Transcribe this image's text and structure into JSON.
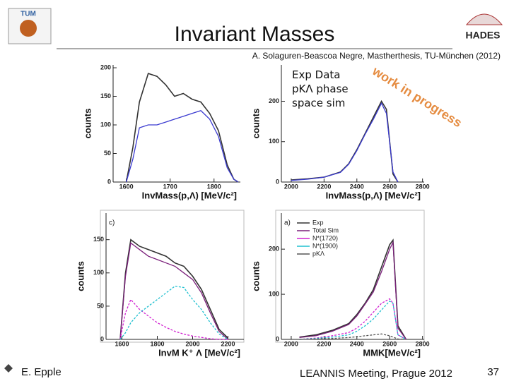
{
  "slide": {
    "title": "Invariant Masses",
    "subtitle": "A. Solaguren-Beascoa Negre, Mastherthesis, TU-München (2012)",
    "logo_left": "TUM",
    "logo_right": "HADES",
    "author": "E. Epple",
    "event": "LEANNIS Meeting, Prague 2012",
    "page": "37"
  },
  "chart_data": [
    {
      "type": "line",
      "xlabel": "InvMass(p,Λ) [MeV/c²]",
      "ylabel": "counts",
      "x": [
        1600,
        1615,
        1630,
        1650,
        1670,
        1690,
        1710,
        1730,
        1750,
        1770,
        1790,
        1810,
        1830,
        1845,
        1855
      ],
      "series": [
        {
          "color": "#333333",
          "values": [
            0,
            60,
            140,
            190,
            185,
            170,
            150,
            155,
            145,
            140,
            120,
            90,
            30,
            5,
            0
          ]
        },
        {
          "color": "#3a3ad0",
          "values": [
            0,
            40,
            95,
            100,
            100,
            105,
            110,
            115,
            120,
            125,
            110,
            80,
            25,
            5,
            0
          ]
        }
      ],
      "xlim": [
        1570,
        1860
      ],
      "ylim": [
        0,
        205
      ],
      "xticks": [
        1600,
        1700,
        1800
      ],
      "yticks": [
        0,
        50,
        100,
        150,
        200
      ]
    },
    {
      "type": "line",
      "xlabel": "InvMass(p,Λ) [MeV/c²]",
      "ylabel": "counts",
      "annotation": "work in progress",
      "x": [
        2000,
        2100,
        2200,
        2300,
        2350,
        2400,
        2450,
        2500,
        2550,
        2580,
        2620,
        2650
      ],
      "series": [
        {
          "name": "Exp Data",
          "color": "#333333",
          "values": [
            5,
            8,
            12,
            25,
            45,
            80,
            120,
            160,
            200,
            180,
            20,
            0
          ]
        },
        {
          "name": "pKΛ phase space sim",
          "color": "#3a3ad0",
          "values": [
            4,
            7,
            12,
            24,
            44,
            78,
            118,
            155,
            195,
            170,
            25,
            0
          ]
        }
      ],
      "xlim": [
        1940,
        2810
      ],
      "ylim": [
        0,
        290
      ],
      "xticks": [
        2000,
        2200,
        2400,
        2600,
        2800
      ],
      "yticks": [
        0,
        100,
        200
      ]
    },
    {
      "type": "line",
      "xlabel": "InvM K⁺ Λ [MeV/c²]",
      "ylabel": "counts",
      "panel": "c)",
      "x": [
        1590,
        1620,
        1650,
        1700,
        1750,
        1800,
        1850,
        1900,
        1950,
        2000,
        2050,
        2100,
        2150,
        2200
      ],
      "series": [
        {
          "color": "#333333",
          "values": [
            0,
            100,
            150,
            140,
            135,
            130,
            125,
            115,
            110,
            95,
            75,
            45,
            15,
            2
          ]
        },
        {
          "color": "#7a1f7a",
          "values": [
            0,
            95,
            145,
            135,
            125,
            120,
            115,
            110,
            100,
            90,
            70,
            40,
            12,
            0
          ]
        },
        {
          "color": "#d020d0",
          "values": [
            0,
            40,
            60,
            45,
            35,
            25,
            18,
            12,
            8,
            5,
            3,
            1,
            0,
            0
          ]
        },
        {
          "color": "#20c0d0",
          "values": [
            0,
            10,
            25,
            40,
            50,
            60,
            70,
            80,
            78,
            60,
            45,
            25,
            8,
            0
          ]
        }
      ],
      "xlim": [
        1510,
        2290
      ],
      "ylim": [
        0,
        190
      ],
      "xticks": [
        1600,
        1800,
        2000,
        2200
      ],
      "yticks": [
        0,
        50,
        100,
        150
      ]
    },
    {
      "type": "line",
      "xlabel": "MMK[MeV/c²]",
      "ylabel": "counts",
      "panel": "a)",
      "x": [
        2050,
        2150,
        2250,
        2350,
        2400,
        2450,
        2500,
        2550,
        2600,
        2620,
        2650,
        2700
      ],
      "series": [
        {
          "name": "Exp",
          "color": "#333333",
          "values": [
            5,
            10,
            20,
            35,
            55,
            80,
            110,
            160,
            210,
            220,
            30,
            0
          ]
        },
        {
          "name": "Total Sim",
          "color": "#7a1f7a",
          "values": [
            4,
            8,
            18,
            33,
            52,
            78,
            105,
            150,
            200,
            215,
            25,
            0
          ]
        },
        {
          "name": "N*(1720)",
          "color": "#d020d0",
          "values": [
            0,
            3,
            8,
            15,
            25,
            40,
            60,
            80,
            90,
            80,
            10,
            0
          ]
        },
        {
          "name": "N*(1900)",
          "color": "#20c0d0",
          "values": [
            0,
            2,
            5,
            10,
            18,
            30,
            45,
            65,
            85,
            80,
            10,
            0
          ]
        },
        {
          "name": "pKΛ",
          "color": "#555555",
          "values": [
            0,
            1,
            2,
            4,
            6,
            8,
            10,
            12,
            8,
            5,
            1,
            0
          ]
        }
      ],
      "xlim": [
        1940,
        2810
      ],
      "ylim": [
        0,
        280
      ],
      "xticks": [
        2000,
        2200,
        2400,
        2600,
        2800
      ],
      "yticks": [
        0,
        100,
        200
      ]
    }
  ]
}
